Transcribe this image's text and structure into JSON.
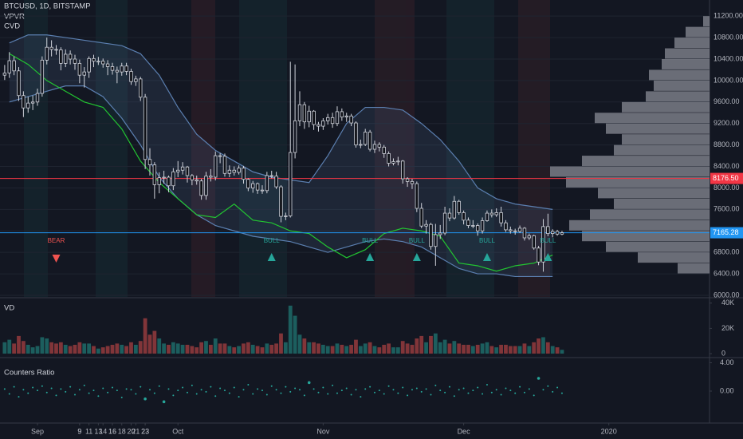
{
  "chart_data": {
    "type": "candlestick",
    "title": "BTCUSD, 1D, BITSTAMP",
    "indicators": [
      "VPVR",
      "CVD"
    ],
    "x": [
      -7,
      -6,
      -5,
      -4,
      -3,
      -2,
      -1,
      0,
      1,
      2,
      3,
      4,
      5,
      6,
      7,
      8,
      9,
      10,
      11,
      12,
      13,
      14,
      15,
      16,
      17,
      18,
      19,
      20,
      21,
      22,
      23,
      24,
      25,
      26,
      27,
      28,
      29,
      30,
      31,
      32,
      33,
      34,
      35,
      36,
      37,
      38,
      39,
      40,
      41,
      42,
      43,
      44,
      45,
      46,
      47,
      48,
      49,
      50,
      51,
      52,
      53,
      54,
      55,
      56,
      57,
      58,
      59,
      60,
      61,
      62,
      63,
      64,
      65,
      66,
      67,
      68,
      69,
      70,
      71,
      72,
      73,
      74,
      75,
      76,
      77,
      78,
      79,
      80,
      81,
      82,
      83,
      84,
      85,
      86,
      87,
      88,
      89,
      90,
      91,
      92,
      93,
      94,
      95,
      96,
      97,
      98,
      99,
      100,
      101,
      102,
      103,
      104,
      105,
      106,
      107,
      108,
      109,
      110,
      111,
      112
    ],
    "xlim": [
      -8,
      143.5
    ],
    "xticks": [
      {
        "value": 0,
        "label": "Sep"
      },
      9,
      16,
      23,
      {
        "value": 30,
        "label": "Oct"
      },
      14,
      21,
      {
        "value": 61,
        "label": "Nov"
      },
      11,
      18,
      {
        "value": 91,
        "label": "Dec"
      },
      9,
      16,
      23,
      {
        "value": 122,
        "label": "2020"
      },
      13,
      20
    ],
    "candles": [
      [
        10100,
        10290,
        10010,
        10140
      ],
      [
        10140,
        10530,
        10050,
        10370
      ],
      [
        10370,
        10450,
        10100,
        10180
      ],
      [
        10180,
        10250,
        9620,
        9720
      ],
      [
        9720,
        9800,
        9320,
        9490
      ],
      [
        9490,
        9700,
        9400,
        9580
      ],
      [
        9580,
        9720,
        9450,
        9600
      ],
      [
        9600,
        9850,
        9530,
        9760
      ],
      [
        9760,
        10450,
        9700,
        10380
      ],
      [
        10380,
        10800,
        10300,
        10620
      ],
      [
        10620,
        10750,
        10450,
        10580
      ],
      [
        10580,
        10660,
        10480,
        10570
      ],
      [
        10570,
        10620,
        10190,
        10320
      ],
      [
        10320,
        10580,
        10250,
        10490
      ],
      [
        10490,
        10560,
        10300,
        10400
      ],
      [
        10400,
        10480,
        10200,
        10320
      ],
      [
        10320,
        10390,
        9950,
        10100
      ],
      [
        10100,
        10250,
        9870,
        10160
      ],
      [
        10160,
        10450,
        10050,
        10410
      ],
      [
        10410,
        10480,
        10250,
        10360
      ],
      [
        10360,
        10440,
        10290,
        10360
      ],
      [
        10360,
        10410,
        10240,
        10310
      ],
      [
        10310,
        10380,
        10100,
        10260
      ],
      [
        10260,
        10330,
        10110,
        10190
      ],
      [
        10190,
        10260,
        9950,
        10160
      ],
      [
        10160,
        10330,
        10090,
        10270
      ],
      [
        10270,
        10330,
        10100,
        10170
      ],
      [
        10170,
        10220,
        9920,
        9980
      ],
      [
        9980,
        10090,
        9900,
        10030
      ],
      [
        10030,
        10070,
        9620,
        9690
      ],
      [
        9690,
        9750,
        8350,
        8530
      ],
      [
        8530,
        8740,
        8230,
        8430
      ],
      [
        8430,
        8480,
        7800,
        8060
      ],
      [
        8060,
        8290,
        7900,
        8190
      ],
      [
        8190,
        8320,
        8080,
        8200
      ],
      [
        8200,
        8230,
        7920,
        8040
      ],
      [
        8040,
        8370,
        7960,
        8300
      ],
      [
        8300,
        8500,
        8200,
        8330
      ],
      [
        8330,
        8480,
        8250,
        8390
      ],
      [
        8390,
        8410,
        8100,
        8230
      ],
      [
        8230,
        8260,
        8050,
        8150
      ],
      [
        8150,
        8230,
        8060,
        8130
      ],
      [
        8130,
        8170,
        7780,
        7860
      ],
      [
        7860,
        8300,
        7780,
        8220
      ],
      [
        8220,
        8350,
        8120,
        8200
      ],
      [
        8200,
        8680,
        8140,
        8600
      ],
      [
        8600,
        8650,
        8460,
        8590
      ],
      [
        8590,
        8640,
        8210,
        8270
      ],
      [
        8270,
        8420,
        8200,
        8330
      ],
      [
        8330,
        8400,
        8230,
        8290
      ],
      [
        8290,
        8420,
        8250,
        8370
      ],
      [
        8370,
        8410,
        8080,
        8160
      ],
      [
        8160,
        8180,
        7940,
        8000
      ],
      [
        8000,
        8130,
        7910,
        8080
      ],
      [
        8080,
        8100,
        7890,
        7960
      ],
      [
        7960,
        8050,
        7890,
        7950
      ],
      [
        7950,
        8300,
        7900,
        8230
      ],
      [
        8230,
        8320,
        8180,
        8220
      ],
      [
        8220,
        8300,
        7980,
        8020
      ],
      [
        8020,
        8050,
        7360,
        7470
      ],
      [
        7470,
        7540,
        7400,
        7480
      ],
      [
        7480,
        10350,
        7450,
        8660
      ],
      [
        8660,
        10300,
        8550,
        9250
      ],
      [
        9250,
        9800,
        9150,
        9550
      ],
      [
        9550,
        9600,
        9100,
        9230
      ],
      [
        9230,
        9530,
        9130,
        9430
      ],
      [
        9430,
        9450,
        9080,
        9180
      ],
      [
        9180,
        9230,
        9050,
        9150
      ],
      [
        9150,
        9300,
        9080,
        9250
      ],
      [
        9250,
        9380,
        9180,
        9310
      ],
      [
        9310,
        9400,
        9120,
        9200
      ],
      [
        9200,
        9520,
        9150,
        9420
      ],
      [
        9420,
        9480,
        9250,
        9320
      ],
      [
        9320,
        9400,
        9230,
        9340
      ],
      [
        9340,
        9380,
        9150,
        9210
      ],
      [
        9210,
        9240,
        8750,
        8800
      ],
      [
        8800,
        8900,
        8740,
        8810
      ],
      [
        8810,
        9100,
        8780,
        9040
      ],
      [
        9040,
        9080,
        8680,
        8720
      ],
      [
        8720,
        8880,
        8650,
        8810
      ],
      [
        8810,
        8850,
        8680,
        8760
      ],
      [
        8760,
        8800,
        8560,
        8640
      ],
      [
        8640,
        8680,
        8400,
        8460
      ],
      [
        8460,
        8550,
        8420,
        8490
      ],
      [
        8490,
        8580,
        8420,
        8500
      ],
      [
        8500,
        8520,
        8080,
        8170
      ],
      [
        8170,
        8200,
        8020,
        8120
      ],
      [
        8120,
        8170,
        7980,
        8080
      ],
      [
        8080,
        8120,
        7550,
        7620
      ],
      [
        7620,
        7720,
        7250,
        7290
      ],
      [
        7290,
        7400,
        7150,
        7320
      ],
      [
        7320,
        7350,
        6850,
        6910
      ],
      [
        6910,
        7330,
        6550,
        7130
      ],
      [
        7130,
        7310,
        7050,
        7160
      ],
      [
        7160,
        7650,
        7120,
        7530
      ],
      [
        7530,
        7620,
        7380,
        7440
      ],
      [
        7440,
        7850,
        7410,
        7750
      ],
      [
        7750,
        7780,
        7500,
        7540
      ],
      [
        7540,
        7580,
        7320,
        7400
      ],
      [
        7400,
        7450,
        7250,
        7300
      ],
      [
        7300,
        7400,
        7250,
        7300
      ],
      [
        7300,
        7340,
        7110,
        7200
      ],
      [
        7200,
        7450,
        7150,
        7390
      ],
      [
        7390,
        7580,
        7370,
        7530
      ],
      [
        7530,
        7600,
        7450,
        7500
      ],
      [
        7500,
        7620,
        7460,
        7540
      ],
      [
        7540,
        7650,
        7280,
        7350
      ],
      [
        7350,
        7400,
        7180,
        7220
      ],
      [
        7220,
        7280,
        7150,
        7200
      ],
      [
        7200,
        7240,
        7130,
        7190
      ],
      [
        7190,
        7300,
        7160,
        7250
      ],
      [
        7250,
        7270,
        7020,
        7070
      ],
      [
        7070,
        7150,
        7030,
        7110
      ],
      [
        7110,
        7130,
        6850,
        6880
      ],
      [
        6880,
        6920,
        6560,
        6620
      ],
      [
        6620,
        7420,
        6440,
        7280
      ],
      [
        7280,
        7520,
        7100,
        7150
      ],
      [
        7150,
        7230,
        7080,
        7190
      ],
      [
        7190,
        7220,
        7110,
        7140
      ],
      [
        7140,
        7200,
        7120,
        7165.28
      ]
    ],
    "ylim": [
      5970,
      11500
    ],
    "yticks": [
      {
        "value": 6000,
        "label": "6000.00"
      },
      {
        "value": 6400,
        "label": "6400.00"
      },
      {
        "value": 6800,
        "label": "6800.00"
      },
      {
        "value": 7200,
        "label": "7200.00"
      },
      {
        "value": 7600,
        "label": "7600.00"
      },
      {
        "value": 8000,
        "label": "8000.00"
      },
      {
        "value": 8400,
        "label": "8400.00"
      },
      {
        "value": 8800,
        "label": "8800.00"
      },
      {
        "value": 9200,
        "label": "9200.00"
      },
      {
        "value": 9600,
        "label": "9600.00"
      },
      {
        "value": 10000,
        "label": "10000.00"
      },
      {
        "value": 10400,
        "label": "10400.00"
      },
      {
        "value": 10800,
        "label": "10800.00"
      },
      {
        "value": 11200,
        "label": "11200.00"
      }
    ],
    "grid": true,
    "up_color": "#d1d4dc",
    "down_color": "#0e1016",
    "price_lines": [
      {
        "value": 8176.5,
        "label": "8176.50",
        "color": "#f23645"
      },
      {
        "value": 7165.28,
        "color": "#2196f3"
      }
    ],
    "lines": {
      "x": [
        -6,
        -2,
        2,
        6,
        10,
        14,
        18,
        22,
        26,
        30,
        34,
        38,
        42,
        46,
        50,
        54,
        58,
        62,
        66,
        70,
        74,
        78,
        82,
        86,
        90,
        94,
        98,
        102,
        106,
        110
      ],
      "upper": [
        10700,
        10850,
        10850,
        10800,
        10750,
        10700,
        10650,
        10500,
        10100,
        9500,
        9000,
        8700,
        8500,
        8300,
        8200,
        8150,
        8100,
        8600,
        9200,
        9500,
        9500,
        9450,
        9200,
        8900,
        8500,
        8000,
        7800,
        7700,
        7650,
        7600
      ],
      "lower": [
        9600,
        9700,
        9800,
        9900,
        9900,
        9700,
        9300,
        8800,
        8200,
        7800,
        7500,
        7300,
        7200,
        7100,
        7050,
        7000,
        6900,
        6800,
        6900,
        7000,
        7050,
        7000,
        6900,
        6700,
        6500,
        6400,
        6400,
        6350,
        6350,
        6350
      ],
      "cvd": [
        10500,
        10300,
        10000,
        9800,
        9600,
        9500,
        9100,
        8500,
        8100,
        7800,
        7500,
        7450,
        7700,
        7400,
        7350,
        7200,
        7150,
        6900,
        6700,
        6850,
        7150,
        7250,
        7200,
        7100,
        6600,
        6550,
        6450,
        6550,
        6600,
        6750
      ],
      "band_color": "#5b7fb0",
      "cvd_color": "#22c531"
    },
    "signals": [
      {
        "x": 4,
        "label": "BEAR",
        "color": "#ef5350"
      },
      {
        "x": 50,
        "label": "BULL",
        "color": "#26a69a"
      },
      {
        "x": 71,
        "label": "BULL",
        "color": "#26a69a"
      },
      {
        "x": 81,
        "label": "BULL",
        "color": "#26a69a"
      },
      {
        "x": 96,
        "label": "BULL",
        "color": "#26a69a"
      },
      {
        "x": 109,
        "label": "BULL",
        "color": "#26a69a"
      }
    ],
    "volume_profile": {
      "bins": [
        6400,
        6600,
        6800,
        7000,
        7200,
        7400,
        7600,
        7800,
        8000,
        8200,
        8400,
        8600,
        8800,
        9000,
        9200,
        9400,
        9600,
        9800,
        10000,
        10200,
        10400,
        10600,
        10800,
        11000,
        11200
      ],
      "values": [
        20,
        45,
        65,
        80,
        88,
        75,
        60,
        70,
        90,
        100,
        80,
        60,
        55,
        65,
        72,
        55,
        40,
        35,
        38,
        30,
        28,
        22,
        15,
        4
      ],
      "xlim": [
        0,
        100
      ],
      "color": "#b2b5be"
    },
    "volume": {
      "title": "VD",
      "values": [
        9000,
        11000,
        8000,
        14000,
        10000,
        7000,
        5000,
        6000,
        13000,
        12000,
        9000,
        8000,
        9000,
        7000,
        6000,
        7000,
        9000,
        8000,
        8000,
        6000,
        4000,
        5000,
        6000,
        7000,
        8000,
        7000,
        6000,
        9000,
        7000,
        10000,
        28000,
        15000,
        18000,
        12000,
        8000,
        7000,
        9000,
        8000,
        7000,
        7000,
        6000,
        5000,
        9000,
        10000,
        7000,
        12000,
        8000,
        8000,
        6000,
        5000,
        6000,
        8000,
        9000,
        7000,
        6000,
        5000,
        8000,
        7000,
        8000,
        16000,
        9000,
        38000,
        30000,
        15000,
        12000,
        9000,
        9000,
        8000,
        7000,
        6000,
        6000,
        8000,
        7000,
        6000,
        7000,
        11000,
        6000,
        8000,
        9000,
        6000,
        5000,
        7000,
        8000,
        5000,
        5000,
        10000,
        8000,
        7000,
        12000,
        14000,
        9000,
        14000,
        16000,
        9000,
        11000,
        8000,
        10000,
        8000,
        7000,
        7000,
        6000,
        7000,
        8000,
        9000,
        6000,
        5000,
        7000,
        7000,
        6000,
        6000,
        6000,
        8000,
        6000,
        9000,
        12000,
        13000,
        9000,
        6000,
        5000,
        3000
      ],
      "ylim": [
        -2500,
        43000
      ],
      "yticks": [
        0,
        {
          "value": 20000,
          "label": "20K"
        },
        {
          "value": 40000,
          "label": "40K"
        }
      ],
      "up_color": "#26a69a",
      "down_color": "#ef5350"
    },
    "ratio": {
      "title": "Counters Ratio",
      "values": [
        0.3,
        -0.4,
        0.6,
        -0.8,
        0.2,
        -0.3,
        0.5,
        0.1,
        0.7,
        -0.2,
        0.4,
        -0.6,
        0.3,
        -0.1,
        0.6,
        -0.5,
        0.2,
        0.8,
        -0.3,
        0.1,
        -0.7,
        0.4,
        -0.2,
        0.5,
        0.1,
        -0.9,
        0.3,
        0.2,
        -0.4,
        0.6,
        -1.1,
        0.2,
        -0.3,
        0.7,
        -1.5,
        0.3,
        -0.6,
        0.1,
        0.5,
        -0.2,
        0.8,
        -0.4,
        0.2,
        -0.1,
        0.6,
        -0.7,
        0.4,
        0.1,
        -0.3,
        0.5,
        -0.8,
        0.2,
        0.9,
        -0.4,
        0.3,
        0.1,
        -0.5,
        0.7,
        0.2,
        -0.3,
        0.6,
        -0.1,
        0.4,
        0.2,
        -0.6,
        1.2,
        0.3,
        -0.2,
        0.5,
        -0.4,
        0.8,
        -0.3,
        0.1,
        0.4,
        -0.5,
        0.2,
        -0.8,
        0.3,
        0.6,
        -0.2,
        0.1,
        -0.4,
        0.7,
        0.2,
        -0.3,
        0.5,
        -0.6,
        0.2,
        0.4,
        -0.1,
        0.3,
        -0.5,
        0.8,
        0.1,
        -0.2,
        0.6,
        -0.7,
        0.2,
        0.4,
        -0.3,
        0.1,
        0.5,
        -0.4,
        0.9,
        -0.2,
        0.2,
        -0.5,
        0.4,
        0.1,
        -0.3,
        0.6,
        -0.2,
        0.3,
        -0.6,
        1.8,
        0.2,
        0.7,
        -0.1,
        0.5,
        -0.3
      ],
      "ylim": [
        -4.5,
        4.5
      ],
      "yticks": [
        {
          "value": 0,
          "label": "0.00"
        },
        {
          "value": 4,
          "label": "4.00"
        }
      ],
      "color": "#26a69a"
    }
  }
}
